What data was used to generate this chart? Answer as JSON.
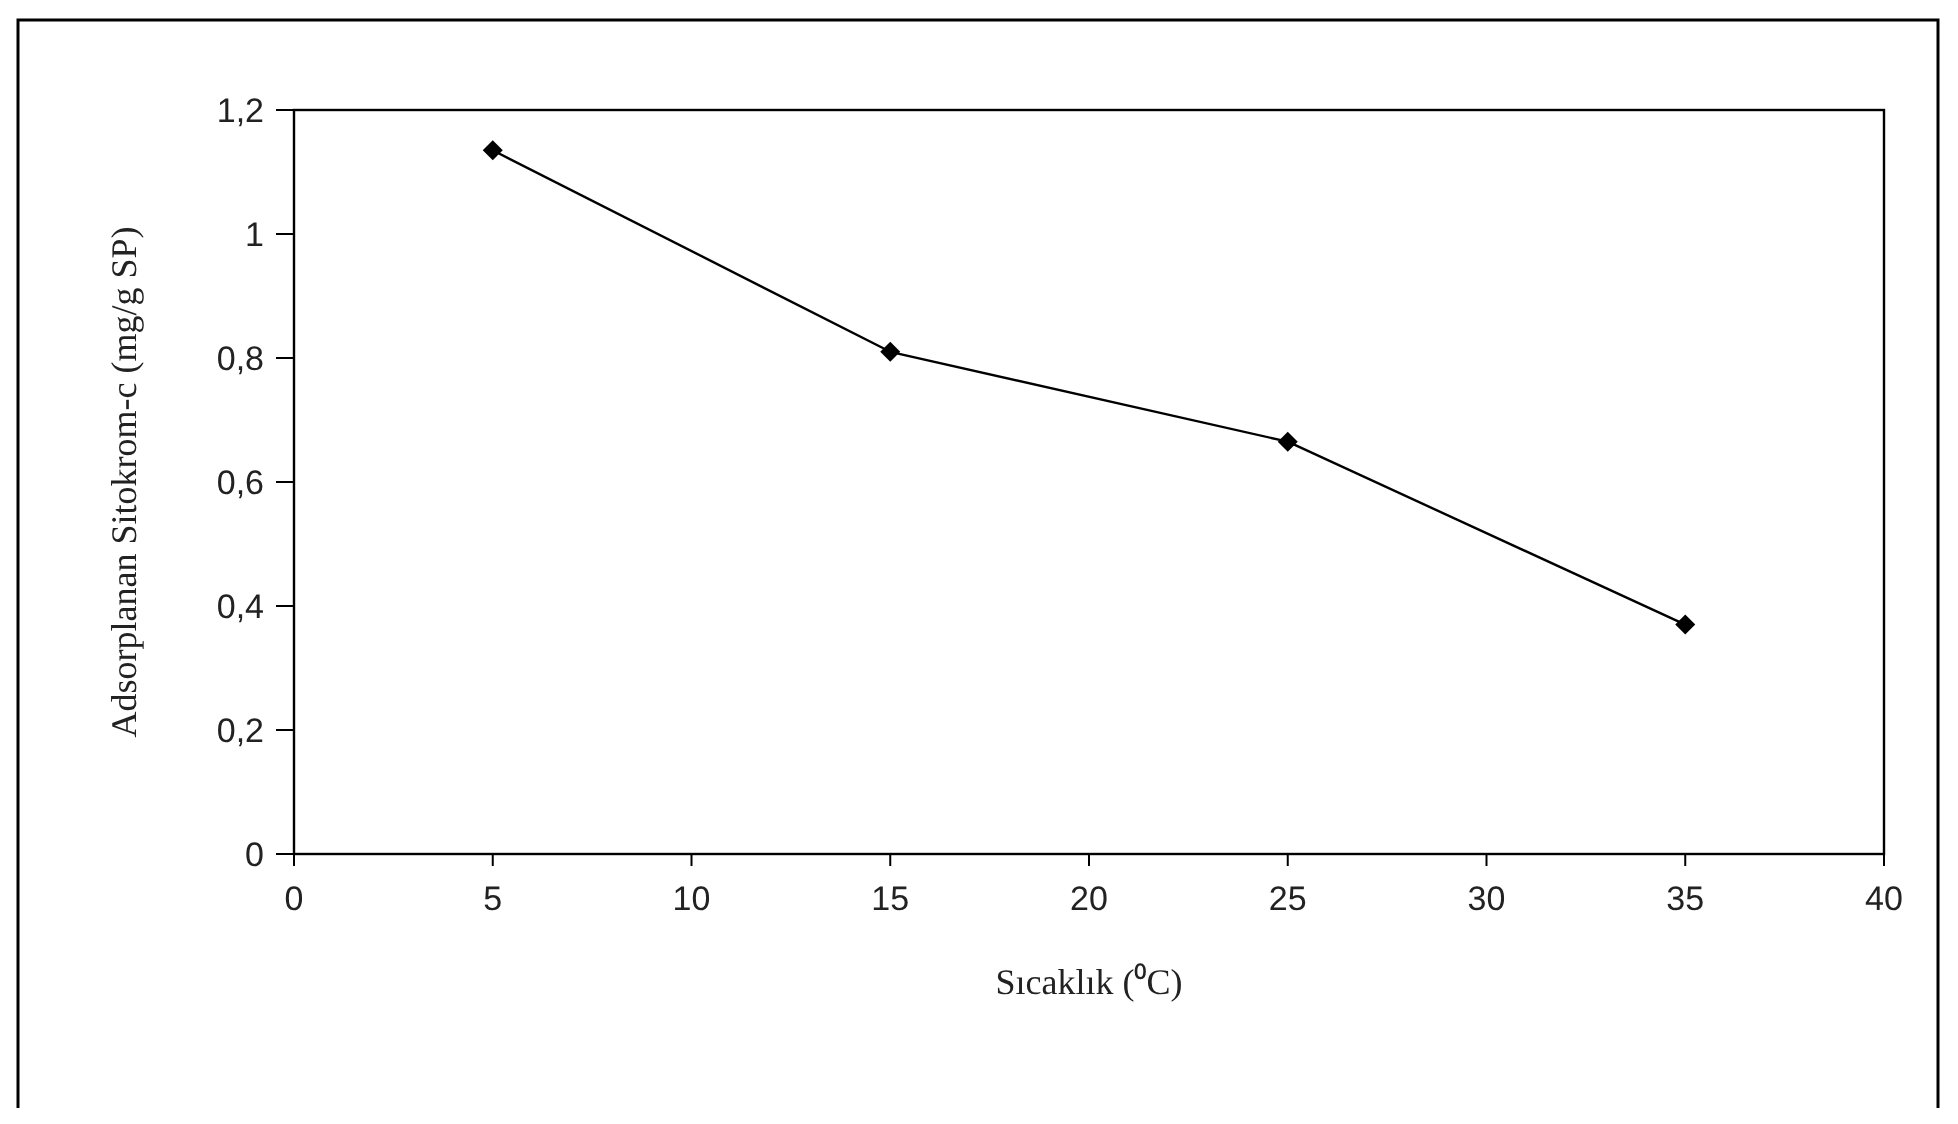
{
  "chart_data": {
    "type": "line",
    "xlabel": "Sıcaklık (⁰C)",
    "ylabel": "Adsorplanan Sitokrom-c  (mg/g SP)",
    "x": [
      5,
      15,
      25,
      35
    ],
    "series": [
      {
        "color": "#000000",
        "values": [
          1.135,
          0.81,
          0.665,
          0.37
        ]
      }
    ],
    "xlim": [
      0,
      40
    ],
    "xticks": [
      0,
      5,
      10,
      15,
      20,
      25,
      30,
      35,
      40
    ],
    "ylim": [
      0,
      1.2
    ],
    "yticks": [
      {
        "value": 0,
        "label": "0"
      },
      {
        "value": 0.2,
        "label": "0,2"
      },
      {
        "value": 0.4,
        "label": "0,4"
      },
      {
        "value": 0.6,
        "label": "0,6"
      },
      {
        "value": 0.8,
        "label": "0,8"
      },
      {
        "value": 1,
        "label": "1"
      },
      {
        "value": 1.2,
        "label": "1,2"
      }
    ],
    "marker": "diamond",
    "line_style": "solid",
    "grid": false
  }
}
